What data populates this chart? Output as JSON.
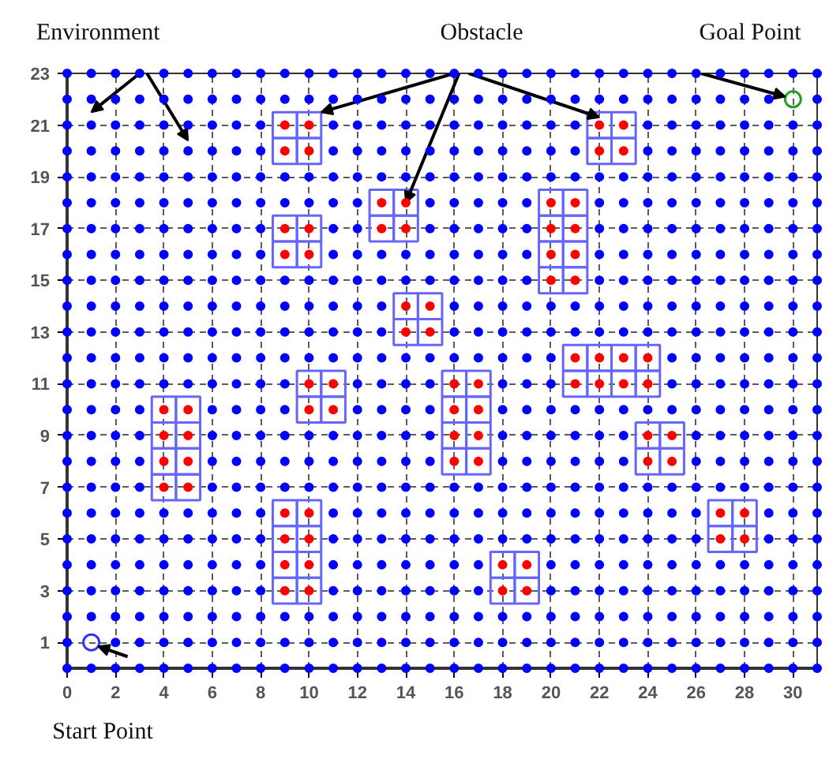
{
  "chart_data": {
    "type": "scatter",
    "marker": "circle",
    "grid": true,
    "xlim": [
      0,
      31
    ],
    "ylim": [
      0,
      23
    ],
    "xticks": [
      0,
      2,
      4,
      6,
      8,
      10,
      12,
      14,
      16,
      18,
      20,
      22,
      24,
      26,
      28,
      30
    ],
    "yticks": [
      1,
      3,
      5,
      7,
      9,
      11,
      13,
      15,
      17,
      19,
      21,
      23
    ],
    "annotations": [
      "Environment",
      {
        "text": "Obstacle",
        "x": 14,
        "y": 18
      },
      {
        "text": "Goal Point",
        "x": 30,
        "y": 22
      },
      "Start Point"
    ],
    "series": [
      {
        "color": "#0000ff",
        "x": [
          0,
          1,
          2,
          3,
          4,
          5,
          6,
          7,
          8,
          9,
          10,
          11,
          12,
          13,
          14,
          15,
          16,
          17,
          18,
          19,
          20,
          21,
          22,
          23,
          24,
          25,
          26,
          27,
          28,
          29,
          30,
          31
        ],
        "values": [
          0,
          0,
          0,
          0,
          0,
          0,
          0,
          0,
          0,
          0,
          0,
          0,
          0,
          0,
          0,
          0,
          0,
          0,
          0,
          0,
          0,
          0,
          0,
          0,
          0,
          0,
          0,
          0,
          0,
          0,
          0,
          0
        ]
      },
      {
        "color": "#0000ff",
        "x": [
          0,
          2,
          3,
          4,
          5,
          6,
          7,
          8,
          9,
          10,
          11,
          12,
          13,
          14,
          15,
          16,
          17,
          18,
          19,
          20,
          21,
          22,
          23,
          24,
          25,
          26,
          27,
          28,
          29,
          30,
          31
        ],
        "values": [
          1,
          1,
          1,
          1,
          1,
          1,
          1,
          1,
          1,
          1,
          1,
          1,
          1,
          1,
          1,
          1,
          1,
          1,
          1,
          1,
          1,
          1,
          1,
          1,
          1,
          1,
          1,
          1,
          1,
          1,
          1
        ]
      },
      {
        "color": "#0000ff",
        "x": [
          0,
          1,
          2,
          3,
          4,
          5,
          6,
          7,
          8,
          9,
          10,
          11,
          12,
          13,
          14,
          15,
          16,
          17,
          18,
          19,
          20,
          21,
          22,
          23,
          24,
          25,
          26,
          27,
          28,
          29,
          30,
          31
        ],
        "values": [
          2,
          2,
          2,
          2,
          2,
          2,
          2,
          2,
          2,
          2,
          2,
          2,
          2,
          2,
          2,
          2,
          2,
          2,
          2,
          2,
          2,
          2,
          2,
          2,
          2,
          2,
          2,
          2,
          2,
          2,
          2,
          2
        ]
      },
      {
        "color": "#0000ff",
        "x": [
          0,
          1,
          2,
          3,
          4,
          5,
          6,
          7,
          8,
          11,
          12,
          13,
          14,
          15,
          16,
          17,
          20,
          21,
          22,
          23,
          24,
          25,
          26,
          27,
          28,
          29,
          30,
          31
        ],
        "values": [
          3,
          3,
          3,
          3,
          3,
          3,
          3,
          3,
          3,
          3,
          3,
          3,
          3,
          3,
          3,
          3,
          3,
          3,
          3,
          3,
          3,
          3,
          3,
          3,
          3,
          3,
          3,
          3
        ]
      },
      {
        "color": "#0000ff",
        "x": [
          0,
          1,
          2,
          3,
          4,
          5,
          6,
          7,
          8,
          11,
          12,
          13,
          14,
          15,
          16,
          17,
          20,
          21,
          22,
          23,
          24,
          25,
          26,
          27,
          28,
          29,
          30,
          31
        ],
        "values": [
          4,
          4,
          4,
          4,
          4,
          4,
          4,
          4,
          4,
          4,
          4,
          4,
          4,
          4,
          4,
          4,
          4,
          4,
          4,
          4,
          4,
          4,
          4,
          4,
          4,
          4,
          4,
          4
        ]
      },
      {
        "color": "#0000ff",
        "x": [
          0,
          1,
          2,
          3,
          4,
          5,
          6,
          7,
          8,
          11,
          12,
          13,
          14,
          15,
          16,
          17,
          18,
          19,
          20,
          21,
          22,
          23,
          24,
          25,
          26,
          29,
          30,
          31
        ],
        "values": [
          5,
          5,
          5,
          5,
          5,
          5,
          5,
          5,
          5,
          5,
          5,
          5,
          5,
          5,
          5,
          5,
          5,
          5,
          5,
          5,
          5,
          5,
          5,
          5,
          5,
          5,
          5,
          5
        ]
      },
      {
        "color": "#0000ff",
        "x": [
          0,
          1,
          2,
          3,
          4,
          5,
          6,
          7,
          8,
          11,
          12,
          13,
          14,
          15,
          16,
          17,
          18,
          19,
          20,
          21,
          22,
          23,
          24,
          25,
          26,
          29,
          30,
          31
        ],
        "values": [
          6,
          6,
          6,
          6,
          6,
          6,
          6,
          6,
          6,
          6,
          6,
          6,
          6,
          6,
          6,
          6,
          6,
          6,
          6,
          6,
          6,
          6,
          6,
          6,
          6,
          6,
          6,
          6
        ]
      },
      {
        "color": "#0000ff",
        "x": [
          0,
          1,
          2,
          3,
          6,
          7,
          8,
          9,
          10,
          11,
          12,
          13,
          14,
          15,
          16,
          17,
          18,
          19,
          20,
          21,
          22,
          23,
          24,
          25,
          26,
          27,
          28,
          29,
          30,
          31
        ],
        "values": [
          7,
          7,
          7,
          7,
          7,
          7,
          7,
          7,
          7,
          7,
          7,
          7,
          7,
          7,
          7,
          7,
          7,
          7,
          7,
          7,
          7,
          7,
          7,
          7,
          7,
          7,
          7,
          7,
          7,
          7
        ]
      },
      {
        "color": "#0000ff",
        "x": [
          0,
          1,
          2,
          3,
          6,
          7,
          8,
          9,
          10,
          11,
          12,
          13,
          14,
          15,
          18,
          19,
          20,
          21,
          22,
          23,
          26,
          27,
          28,
          29,
          30,
          31
        ],
        "values": [
          8,
          8,
          8,
          8,
          8,
          8,
          8,
          8,
          8,
          8,
          8,
          8,
          8,
          8,
          8,
          8,
          8,
          8,
          8,
          8,
          8,
          8,
          8,
          8,
          8,
          8
        ]
      },
      {
        "color": "#0000ff",
        "x": [
          0,
          1,
          2,
          3,
          6,
          7,
          8,
          9,
          10,
          11,
          12,
          13,
          14,
          15,
          18,
          19,
          20,
          21,
          22,
          23,
          26,
          27,
          28,
          29,
          30,
          31
        ],
        "values": [
          9,
          9,
          9,
          9,
          9,
          9,
          9,
          9,
          9,
          9,
          9,
          9,
          9,
          9,
          9,
          9,
          9,
          9,
          9,
          9,
          9,
          9,
          9,
          9,
          9,
          9
        ]
      },
      {
        "color": "#0000ff",
        "x": [
          0,
          1,
          2,
          3,
          6,
          7,
          8,
          9,
          12,
          13,
          14,
          15,
          18,
          19,
          20,
          21,
          22,
          23,
          24,
          25,
          26,
          27,
          28,
          29,
          30,
          31
        ],
        "values": [
          10,
          10,
          10,
          10,
          10,
          10,
          10,
          10,
          10,
          10,
          10,
          10,
          10,
          10,
          10,
          10,
          10,
          10,
          10,
          10,
          10,
          10,
          10,
          10,
          10,
          10
        ]
      },
      {
        "color": "#0000ff",
        "x": [
          0,
          1,
          2,
          3,
          4,
          5,
          6,
          7,
          8,
          9,
          12,
          13,
          14,
          15,
          18,
          19,
          20,
          25,
          26,
          27,
          28,
          29,
          30,
          31
        ],
        "values": [
          11,
          11,
          11,
          11,
          11,
          11,
          11,
          11,
          11,
          11,
          11,
          11,
          11,
          11,
          11,
          11,
          11,
          11,
          11,
          11,
          11,
          11,
          11,
          11
        ]
      },
      {
        "color": "#0000ff",
        "x": [
          0,
          1,
          2,
          3,
          4,
          5,
          6,
          7,
          8,
          9,
          10,
          11,
          12,
          13,
          14,
          15,
          16,
          17,
          18,
          19,
          20,
          25,
          26,
          27,
          28,
          29,
          30,
          31
        ],
        "values": [
          12,
          12,
          12,
          12,
          12,
          12,
          12,
          12,
          12,
          12,
          12,
          12,
          12,
          12,
          12,
          12,
          12,
          12,
          12,
          12,
          12,
          12,
          12,
          12,
          12,
          12,
          12,
          12
        ]
      },
      {
        "color": "#0000ff",
        "x": [
          0,
          1,
          2,
          3,
          4,
          5,
          6,
          7,
          8,
          9,
          10,
          11,
          12,
          13,
          16,
          17,
          18,
          19,
          20,
          21,
          22,
          23,
          24,
          25,
          26,
          27,
          28,
          29,
          30,
          31
        ],
        "values": [
          13,
          13,
          13,
          13,
          13,
          13,
          13,
          13,
          13,
          13,
          13,
          13,
          13,
          13,
          13,
          13,
          13,
          13,
          13,
          13,
          13,
          13,
          13,
          13,
          13,
          13,
          13,
          13,
          13,
          13
        ]
      },
      {
        "color": "#0000ff",
        "x": [
          0,
          1,
          2,
          3,
          4,
          5,
          6,
          7,
          8,
          9,
          10,
          11,
          12,
          13,
          16,
          17,
          18,
          19,
          20,
          21,
          22,
          23,
          24,
          25,
          26,
          27,
          28,
          29,
          30,
          31
        ],
        "values": [
          14,
          14,
          14,
          14,
          14,
          14,
          14,
          14,
          14,
          14,
          14,
          14,
          14,
          14,
          14,
          14,
          14,
          14,
          14,
          14,
          14,
          14,
          14,
          14,
          14,
          14,
          14,
          14,
          14,
          14
        ]
      },
      {
        "color": "#0000ff",
        "x": [
          0,
          1,
          2,
          3,
          4,
          5,
          6,
          7,
          8,
          9,
          10,
          11,
          12,
          13,
          14,
          15,
          16,
          17,
          18,
          19,
          22,
          23,
          24,
          25,
          26,
          27,
          28,
          29,
          30,
          31
        ],
        "values": [
          15,
          15,
          15,
          15,
          15,
          15,
          15,
          15,
          15,
          15,
          15,
          15,
          15,
          15,
          15,
          15,
          15,
          15,
          15,
          15,
          15,
          15,
          15,
          15,
          15,
          15,
          15,
          15,
          15,
          15
        ]
      },
      {
        "color": "#0000ff",
        "x": [
          0,
          1,
          2,
          3,
          4,
          5,
          6,
          7,
          8,
          11,
          12,
          13,
          14,
          15,
          16,
          17,
          18,
          19,
          22,
          23,
          24,
          25,
          26,
          27,
          28,
          29,
          30,
          31
        ],
        "values": [
          16,
          16,
          16,
          16,
          16,
          16,
          16,
          16,
          16,
          16,
          16,
          16,
          16,
          16,
          16,
          16,
          16,
          16,
          16,
          16,
          16,
          16,
          16,
          16,
          16,
          16,
          16,
          16
        ]
      },
      {
        "color": "#0000ff",
        "x": [
          0,
          1,
          2,
          3,
          4,
          5,
          6,
          7,
          8,
          11,
          12,
          15,
          16,
          17,
          18,
          19,
          22,
          23,
          24,
          25,
          26,
          27,
          28,
          29,
          30,
          31
        ],
        "values": [
          17,
          17,
          17,
          17,
          17,
          17,
          17,
          17,
          17,
          17,
          17,
          17,
          17,
          17,
          17,
          17,
          17,
          17,
          17,
          17,
          17,
          17,
          17,
          17,
          17,
          17
        ]
      },
      {
        "color": "#0000ff",
        "x": [
          0,
          1,
          2,
          3,
          4,
          5,
          6,
          7,
          8,
          9,
          10,
          11,
          12,
          15,
          16,
          17,
          18,
          19,
          22,
          23,
          24,
          25,
          26,
          27,
          28,
          29,
          30,
          31
        ],
        "values": [
          18,
          18,
          18,
          18,
          18,
          18,
          18,
          18,
          18,
          18,
          18,
          18,
          18,
          18,
          18,
          18,
          18,
          18,
          18,
          18,
          18,
          18,
          18,
          18,
          18,
          18,
          18,
          18
        ]
      },
      {
        "color": "#0000ff",
        "x": [
          0,
          1,
          2,
          3,
          4,
          5,
          6,
          7,
          8,
          9,
          10,
          11,
          12,
          13,
          14,
          15,
          16,
          17,
          18,
          19,
          20,
          21,
          22,
          23,
          24,
          25,
          26,
          27,
          28,
          29,
          30,
          31
        ],
        "values": [
          19,
          19,
          19,
          19,
          19,
          19,
          19,
          19,
          19,
          19,
          19,
          19,
          19,
          19,
          19,
          19,
          19,
          19,
          19,
          19,
          19,
          19,
          19,
          19,
          19,
          19,
          19,
          19,
          19,
          19,
          19,
          19
        ]
      },
      {
        "color": "#0000ff",
        "x": [
          0,
          1,
          2,
          3,
          4,
          5,
          6,
          7,
          8,
          11,
          12,
          13,
          14,
          15,
          16,
          17,
          18,
          19,
          20,
          21,
          24,
          25,
          26,
          27,
          28,
          29,
          30,
          31
        ],
        "values": [
          20,
          20,
          20,
          20,
          20,
          20,
          20,
          20,
          20,
          20,
          20,
          20,
          20,
          20,
          20,
          20,
          20,
          20,
          20,
          20,
          20,
          20,
          20,
          20,
          20,
          20,
          20,
          20
        ]
      },
      {
        "color": "#0000ff",
        "x": [
          0,
          1,
          2,
          3,
          4,
          5,
          6,
          7,
          8,
          11,
          12,
          13,
          14,
          15,
          16,
          17,
          18,
          19,
          20,
          21,
          24,
          25,
          26,
          27,
          28,
          29,
          30,
          31
        ],
        "values": [
          21,
          21,
          21,
          21,
          21,
          21,
          21,
          21,
          21,
          21,
          21,
          21,
          21,
          21,
          21,
          21,
          21,
          21,
          21,
          21,
          21,
          21,
          21,
          21,
          21,
          21,
          21,
          21
        ]
      },
      {
        "color": "#0000ff",
        "x": [
          0,
          1,
          2,
          3,
          4,
          5,
          6,
          7,
          8,
          9,
          10,
          11,
          12,
          13,
          14,
          15,
          16,
          17,
          18,
          19,
          20,
          21,
          22,
          23,
          24,
          25,
          26,
          27,
          28,
          29,
          31
        ],
        "values": [
          22,
          22,
          22,
          22,
          22,
          22,
          22,
          22,
          22,
          22,
          22,
          22,
          22,
          22,
          22,
          22,
          22,
          22,
          22,
          22,
          22,
          22,
          22,
          22,
          22,
          22,
          22,
          22,
          22,
          22,
          22
        ]
      },
      {
        "color": "#0000ff",
        "x": [
          0,
          1,
          2,
          3,
          4,
          5,
          6,
          7,
          8,
          9,
          10,
          11,
          12,
          13,
          14,
          15,
          16,
          17,
          18,
          19,
          20,
          21,
          22,
          23,
          24,
          25,
          26,
          27,
          28,
          29,
          30,
          31
        ],
        "values": [
          23,
          23,
          23,
          23,
          23,
          23,
          23,
          23,
          23,
          23,
          23,
          23,
          23,
          23,
          23,
          23,
          23,
          23,
          23,
          23,
          23,
          23,
          23,
          23,
          23,
          23,
          23,
          23,
          23,
          23,
          23,
          23
        ]
      },
      {
        "color": "#ff0000",
        "x": [
          9,
          10,
          18,
          19,
          9,
          10,
          18,
          19,
          9,
          10,
          27,
          28,
          9,
          10,
          27,
          28,
          4,
          5,
          4,
          5,
          16,
          17,
          24,
          25,
          4,
          5,
          16,
          17,
          24,
          25,
          4,
          5,
          10,
          11,
          16,
          17,
          10,
          11,
          16,
          17,
          21,
          22,
          23,
          24,
          21,
          22,
          23,
          24,
          14,
          15,
          14,
          15,
          20,
          21,
          9,
          10,
          20,
          21,
          9,
          10,
          13,
          14,
          20,
          21,
          13,
          14,
          20,
          21,
          9,
          10,
          22,
          23,
          9,
          10,
          22,
          23
        ],
        "values": [
          3,
          3,
          3,
          3,
          4,
          4,
          4,
          4,
          5,
          5,
          5,
          5,
          6,
          6,
          6,
          6,
          7,
          7,
          8,
          8,
          8,
          8,
          8,
          8,
          9,
          9,
          9,
          9,
          9,
          9,
          10,
          10,
          10,
          10,
          10,
          10,
          11,
          11,
          11,
          11,
          11,
          11,
          11,
          11,
          12,
          12,
          12,
          12,
          13,
          13,
          14,
          14,
          15,
          15,
          16,
          16,
          16,
          16,
          17,
          17,
          17,
          17,
          17,
          17,
          18,
          18,
          18,
          18,
          20,
          20,
          20,
          20,
          21,
          21,
          21,
          21
        ]
      },
      {
        "color": "#3333ff",
        "x": [
          1
        ],
        "values": [
          1
        ]
      },
      {
        "color": "#22a022",
        "x": [
          30
        ],
        "values": [
          22
        ]
      }
    ]
  }
}
